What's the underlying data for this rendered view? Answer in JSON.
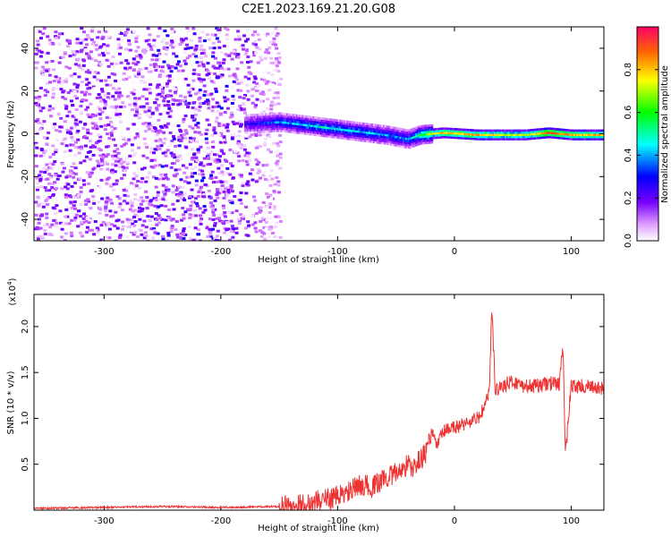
{
  "figure_title": "C2E1.2023.169.21.20.G08",
  "chart_data": [
    {
      "type": "heatmap",
      "xlabel": "Height of straight line (km)",
      "ylabel": "Frequency (Hz)",
      "xlim": [
        -360,
        128
      ],
      "ylim": [
        -50,
        50
      ],
      "xticks": [
        -300,
        -200,
        -100,
        0,
        100
      ],
      "yticks": [
        -40,
        -20,
        0,
        20,
        40
      ],
      "colorbar": {
        "label": "Normalized spectral amplitude",
        "range": [
          0,
          1
        ],
        "ticks": [
          0.0,
          0.2,
          0.4,
          0.6,
          0.8
        ],
        "colormap": [
          "#ffffff",
          "#cc66ff",
          "#7700ff",
          "#0000ff",
          "#00ffff",
          "#00ff00",
          "#ffff00",
          "#ff6600",
          "#ff0066"
        ]
      },
      "features": {
        "broadband_noise_x_range": [
          -360,
          -150
        ],
        "narrowband_signal": [
          {
            "x": -180,
            "freq": 5,
            "amp": 0.3
          },
          {
            "x": -150,
            "freq": 6,
            "amp": 0.45
          },
          {
            "x": -120,
            "freq": 4,
            "amp": 0.5
          },
          {
            "x": -90,
            "freq": 2,
            "amp": 0.5
          },
          {
            "x": -60,
            "freq": 0,
            "amp": 0.45
          },
          {
            "x": -40,
            "freq": -2,
            "amp": 0.45
          },
          {
            "x": -30,
            "freq": 0,
            "amp": 0.6
          },
          {
            "x": -10,
            "freq": 1,
            "amp": 0.8
          },
          {
            "x": 20,
            "freq": 0,
            "amp": 0.8
          },
          {
            "x": 60,
            "freq": 0,
            "amp": 0.7
          },
          {
            "x": 80,
            "freq": 1,
            "amp": 0.9
          },
          {
            "x": 100,
            "freq": 0,
            "amp": 0.8
          },
          {
            "x": 128,
            "freq": 0,
            "amp": 0.8
          }
        ]
      }
    },
    {
      "type": "line",
      "xlabel": "Height of straight line (km)",
      "ylabel": "SNR (10 * v/v)",
      "y_multiplier": "(x10^4)",
      "y_multiplier_base": "(x10",
      "y_multiplier_exp": "4",
      "y_multiplier_close": ")",
      "xlim": [
        -360,
        128
      ],
      "ylim": [
        0,
        2.35
      ],
      "xticks": [
        -300,
        -200,
        -100,
        0,
        100
      ],
      "yticks": [
        0.5,
        1.0,
        1.5,
        2.0
      ],
      "color": "#ee3333",
      "series": [
        {
          "x": [
            -360,
            -300,
            -250,
            -200,
            -150,
            -130,
            -120,
            -110,
            -100,
            -90,
            -80,
            -70,
            -60,
            -50,
            -40,
            -35,
            -30,
            -25,
            -20,
            -15,
            -10,
            0,
            10,
            20,
            25,
            30,
            32,
            35,
            40,
            50,
            60,
            70,
            80,
            90,
            93,
            95,
            100,
            110,
            120,
            128
          ],
          "y": [
            0.02,
            0.03,
            0.04,
            0.03,
            0.04,
            0.06,
            0.1,
            0.12,
            0.15,
            0.2,
            0.28,
            0.25,
            0.35,
            0.4,
            0.5,
            0.45,
            0.55,
            0.6,
            0.85,
            0.7,
            0.85,
            0.9,
            0.95,
            1.0,
            1.1,
            1.3,
            2.2,
            1.3,
            1.35,
            1.4,
            1.35,
            1.35,
            1.38,
            1.38,
            1.8,
            0.6,
            1.35,
            1.35,
            1.33,
            1.32
          ]
        }
      ]
    }
  ]
}
